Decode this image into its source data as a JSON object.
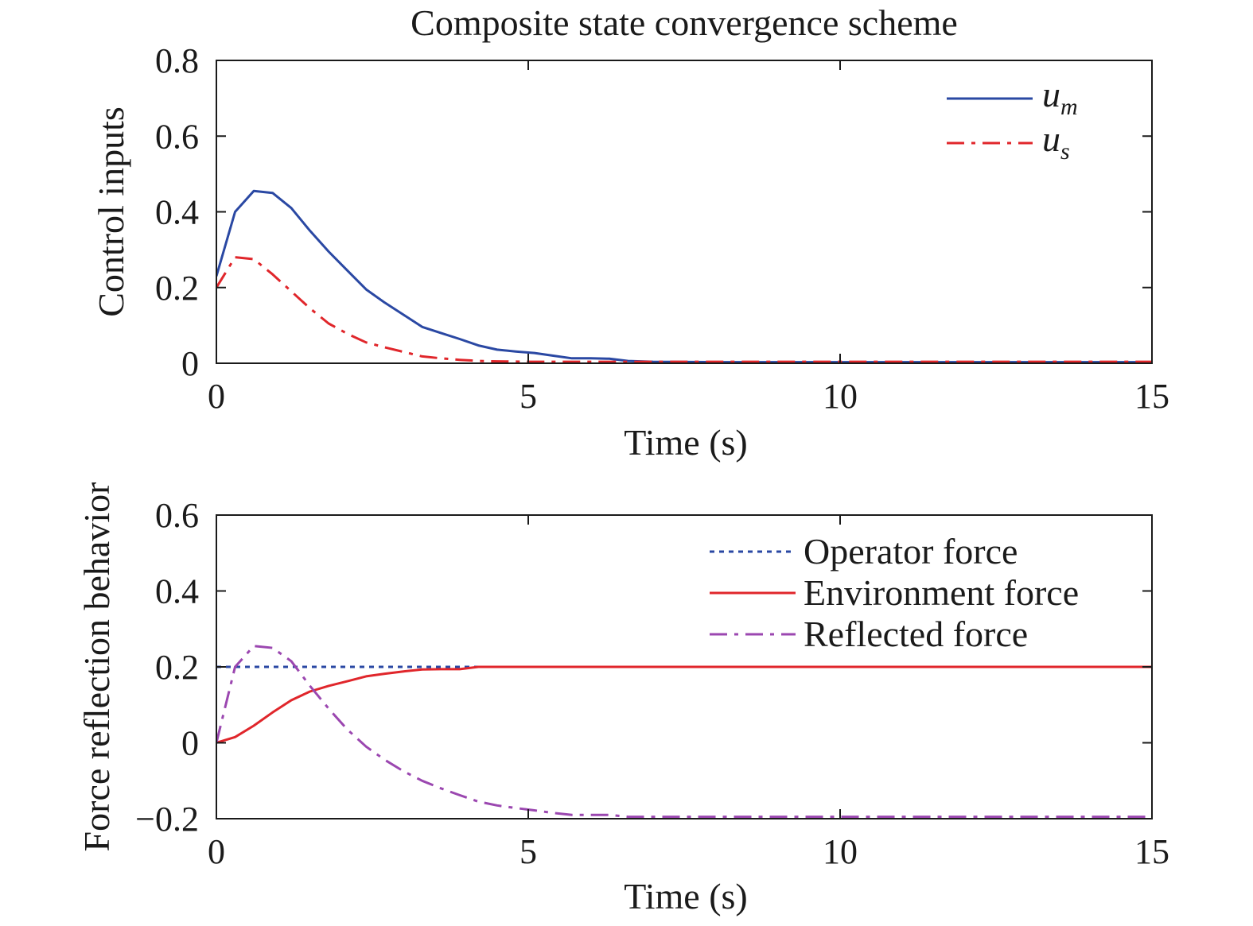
{
  "chart_data": [
    {
      "type": "line",
      "title": "Composite state convergence scheme",
      "xlabel": "Time (s)",
      "ylabel": "Control inputs",
      "xlim": [
        0,
        15
      ],
      "ylim": [
        0,
        0.8
      ],
      "xticks": [
        "0",
        "5",
        "10",
        "15"
      ],
      "yticks": [
        "0",
        "0.2",
        "0.4",
        "0.6",
        "0.8"
      ],
      "xtick_values": [
        0,
        5,
        10,
        15
      ],
      "ytick_values": [
        0,
        0.2,
        0.4,
        0.6,
        0.8
      ],
      "grid": false,
      "legend_position": "top-right",
      "series": [
        {
          "name": "u_m",
          "legend_main": "u",
          "legend_sub": "m",
          "color": "#2a48a3",
          "style": "solid",
          "x": [
            0,
            0.3,
            0.6,
            0.9,
            1.2,
            1.5,
            1.8,
            2.1,
            2.4,
            2.7,
            3.0,
            3.3,
            3.6,
            3.9,
            4.2,
            4.5,
            4.8,
            5.1,
            5.4,
            5.7,
            6.0,
            6.3,
            6.6,
            7.0,
            8.0,
            9.0,
            10.0,
            12.0,
            15.0
          ],
          "y": [
            0.23,
            0.4,
            0.455,
            0.45,
            0.41,
            0.35,
            0.295,
            0.245,
            0.195,
            0.16,
            0.128,
            0.096,
            0.08,
            0.064,
            0.047,
            0.036,
            0.031,
            0.027,
            0.02,
            0.013,
            0.013,
            0.012,
            0.006,
            0.004,
            0.003,
            0.003,
            0.003,
            0.003,
            0.003
          ]
        },
        {
          "name": "u_s",
          "legend_main": "u",
          "legend_sub": "s",
          "color": "#e0262b",
          "style": "dashdot",
          "x": [
            0,
            0.3,
            0.6,
            0.9,
            1.2,
            1.5,
            1.8,
            2.1,
            2.4,
            2.7,
            3.0,
            3.3,
            3.6,
            3.9,
            4.2,
            4.5,
            5.0,
            6.0,
            8.0,
            10.0,
            15.0
          ],
          "y": [
            0.2,
            0.28,
            0.275,
            0.235,
            0.19,
            0.145,
            0.105,
            0.078,
            0.055,
            0.042,
            0.03,
            0.018,
            0.013,
            0.009,
            0.006,
            0.005,
            0.004,
            0.004,
            0.004,
            0.004,
            0.004
          ]
        }
      ]
    },
    {
      "type": "line",
      "title": "",
      "xlabel": "Time (s)",
      "ylabel": "Force reflection behavior",
      "xlim": [
        0,
        15
      ],
      "ylim": [
        -0.2,
        0.6
      ],
      "xticks": [
        "0",
        "5",
        "10",
        "15"
      ],
      "yticks": [
        "−0.2",
        "0",
        "0.2",
        "0.4",
        "0.6"
      ],
      "xtick_values": [
        0,
        5,
        10,
        15
      ],
      "ytick_values": [
        -0.2,
        0,
        0.2,
        0.4,
        0.6
      ],
      "grid": false,
      "legend_position": "top-right",
      "series": [
        {
          "name": "Operator force",
          "color": "#2a48a3",
          "style": "dotted",
          "x": [
            0,
            15
          ],
          "y": [
            0.2,
            0.2
          ]
        },
        {
          "name": "Environment force",
          "color": "#e0262b",
          "style": "solid",
          "x": [
            0,
            0.3,
            0.6,
            0.9,
            1.2,
            1.5,
            1.8,
            2.1,
            2.4,
            2.7,
            3.0,
            3.3,
            3.6,
            3.9,
            4.2,
            5.0,
            7.0,
            10.0,
            15.0
          ],
          "y": [
            0,
            0.015,
            0.045,
            0.08,
            0.112,
            0.135,
            0.15,
            0.162,
            0.175,
            0.182,
            0.188,
            0.193,
            0.194,
            0.194,
            0.2,
            0.2,
            0.2,
            0.2,
            0.2
          ]
        },
        {
          "name": "Reflected force",
          "color": "#9b47b0",
          "style": "dashdot",
          "x": [
            0,
            0.3,
            0.6,
            0.9,
            1.2,
            1.5,
            1.8,
            2.1,
            2.4,
            2.7,
            3.0,
            3.3,
            3.6,
            3.9,
            4.2,
            4.5,
            4.8,
            5.1,
            5.4,
            5.7,
            6.0,
            6.3,
            6.6,
            7.0,
            8.0,
            10.0,
            15.0
          ],
          "y": [
            0,
            0.2,
            0.255,
            0.25,
            0.215,
            0.15,
            0.09,
            0.035,
            -0.01,
            -0.045,
            -0.075,
            -0.1,
            -0.12,
            -0.138,
            -0.155,
            -0.165,
            -0.172,
            -0.178,
            -0.185,
            -0.19,
            -0.19,
            -0.19,
            -0.195,
            -0.195,
            -0.195,
            -0.195,
            -0.195
          ]
        }
      ]
    }
  ]
}
